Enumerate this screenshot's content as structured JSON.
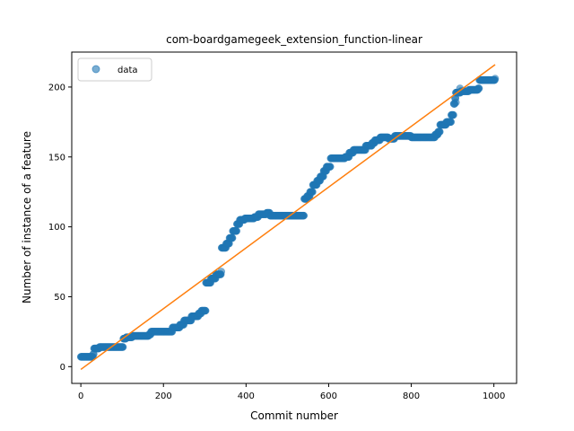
{
  "chart_data": {
    "type": "scatter",
    "title": "com-boardgamegeek_extension_function-linear",
    "xlabel": "Commit number",
    "ylabel": "Number of instance of a feature",
    "xlim": [
      -22,
      1055
    ],
    "ylim": [
      -12,
      225
    ],
    "xticks": [
      0,
      200,
      400,
      600,
      800,
      1000
    ],
    "yticks": [
      0,
      50,
      100,
      150,
      200
    ],
    "grid": false,
    "legend_placement": "top-left",
    "series": [
      {
        "name": "data",
        "kind": "scatter",
        "color": "#1f77b4",
        "alpha": 0.6,
        "steps": [
          [
            0,
            7
          ],
          [
            15,
            7
          ],
          [
            30,
            9
          ],
          [
            32,
            13
          ],
          [
            45,
            14
          ],
          [
            60,
            14
          ],
          [
            100,
            14
          ],
          [
            103,
            20
          ],
          [
            110,
            21
          ],
          [
            125,
            22
          ],
          [
            165,
            23
          ],
          [
            170,
            25
          ],
          [
            210,
            25
          ],
          [
            222,
            28
          ],
          [
            240,
            30
          ],
          [
            250,
            33
          ],
          [
            260,
            33
          ],
          [
            268,
            36
          ],
          [
            285,
            38
          ],
          [
            292,
            40
          ],
          [
            302,
            40
          ],
          [
            303,
            60
          ],
          [
            315,
            63
          ],
          [
            327,
            66
          ],
          [
            340,
            68
          ],
          [
            341,
            85
          ],
          [
            352,
            88
          ],
          [
            360,
            92
          ],
          [
            368,
            97
          ],
          [
            378,
            102
          ],
          [
            385,
            105
          ],
          [
            397,
            106
          ],
          [
            420,
            107
          ],
          [
            430,
            109
          ],
          [
            450,
            110
          ],
          [
            458,
            108
          ],
          [
            500,
            108
          ],
          [
            540,
            108
          ],
          [
            541,
            120
          ],
          [
            548,
            122
          ],
          [
            555,
            125
          ],
          [
            562,
            130
          ],
          [
            572,
            133
          ],
          [
            580,
            136
          ],
          [
            588,
            140
          ],
          [
            595,
            143
          ],
          [
            605,
            149
          ],
          [
            640,
            150
          ],
          [
            650,
            153
          ],
          [
            660,
            155
          ],
          [
            690,
            158
          ],
          [
            705,
            160
          ],
          [
            712,
            162
          ],
          [
            725,
            164
          ],
          [
            745,
            163
          ],
          [
            760,
            165
          ],
          [
            790,
            165
          ],
          [
            800,
            164
          ],
          [
            820,
            164
          ],
          [
            850,
            164
          ],
          [
            858,
            166
          ],
          [
            865,
            168
          ],
          [
            870,
            173
          ],
          [
            885,
            175
          ],
          [
            897,
            180
          ],
          [
            903,
            188
          ],
          [
            906,
            192
          ],
          [
            908,
            196
          ],
          [
            920,
            197
          ],
          [
            940,
            198
          ],
          [
            962,
            199
          ],
          [
            965,
            205
          ],
          [
            1003,
            206
          ]
        ],
        "outliers": [
          [
            908,
            189
          ],
          [
            918,
            199
          ]
        ]
      },
      {
        "name": "",
        "kind": "line",
        "color": "#ff7f0e",
        "x": [
          0,
          1003
        ],
        "y": [
          -2,
          216
        ]
      }
    ]
  }
}
